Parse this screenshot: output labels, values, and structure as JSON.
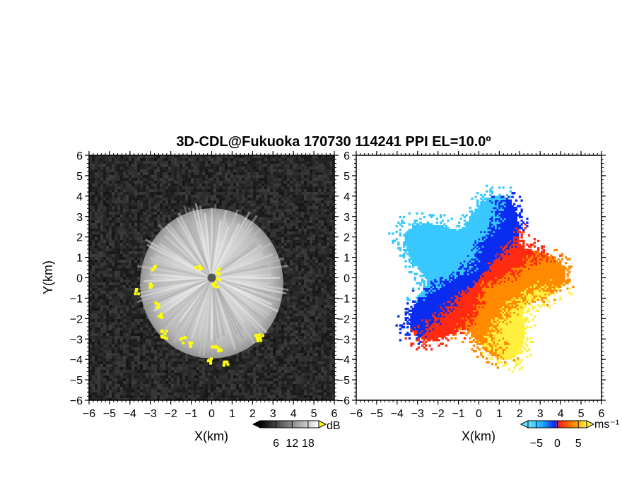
{
  "chart_data": {
    "title": "3D-CDL@Fukuoka 170730 114241 PPI EL=10.0º",
    "panels": [
      {
        "type": "heatmap",
        "variable": "signal-to-noise ratio",
        "xlabel": "X(km)",
        "ylabel": "Y(km)",
        "xlim": [
          -6,
          6
        ],
        "ylim": [
          -6,
          6
        ],
        "ticks": [
          -6,
          -5,
          -4,
          -3,
          -2,
          -1,
          0,
          1,
          2,
          3,
          4,
          5,
          6
        ],
        "tick_labels": [
          "−6",
          "−5",
          "−4",
          "−3",
          "−2",
          "−1",
          "0",
          "1",
          "2",
          "3",
          "4",
          "5",
          "6"
        ],
        "colormap": "grayscale",
        "colorbar": {
          "unit": "dB",
          "range": [
            0,
            22
          ],
          "ticks": [
            "6",
            "12",
            "18"
          ],
          "tick_values": [
            6,
            12,
            18
          ]
        },
        "echo_radius_km": 3.5,
        "flagged_color": "#ffff00"
      },
      {
        "type": "heatmap",
        "variable": "radial velocity",
        "xlabel": "X(km)",
        "ylabel": "",
        "xlim": [
          -6,
          6
        ],
        "ylim": [
          -6,
          6
        ],
        "ticks": [
          -6,
          -5,
          -4,
          -3,
          -2,
          -1,
          0,
          1,
          2,
          3,
          4,
          5,
          6
        ],
        "tick_labels": [
          "−6",
          "−5",
          "−4",
          "−3",
          "−2",
          "−1",
          "0",
          "1",
          "2",
          "3",
          "4",
          "5",
          "6"
        ],
        "colormap": "cyan-blue-red-yellow",
        "colorbar": {
          "unit": "ms⁻¹",
          "range": [
            -7,
            7
          ],
          "ticks": [
            "−5",
            "0",
            "5"
          ],
          "tick_values": [
            -5,
            0,
            5
          ]
        },
        "echo_radius_km": 4.0
      }
    ],
    "colors": {
      "background": "#ffffff",
      "flagged": "#ffff00",
      "approaching_deep": "#0a2cf0",
      "approaching_light": "#38c8ff",
      "receding_red": "#ff2a10",
      "receding_orange": "#ff8a00",
      "receding_yellow": "#fff040"
    }
  }
}
